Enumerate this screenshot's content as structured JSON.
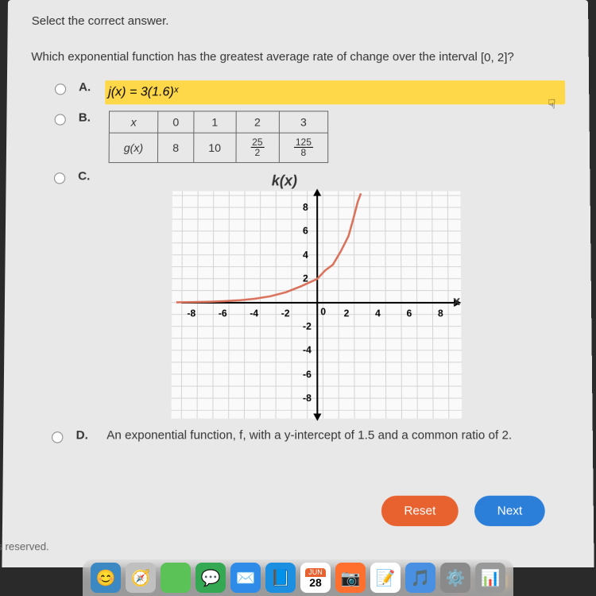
{
  "instruction": "Select the correct answer.",
  "question_prefix": "Which exponential function has the greatest average rate of change over the interval ",
  "interval": "[0, 2]",
  "question_suffix": "?",
  "options": {
    "A": {
      "label": "A.",
      "text": "j(x)  =  3(1.6)ˣ",
      "highlighted": true
    },
    "B": {
      "label": "B.",
      "table": {
        "header_x": "x",
        "header_g": "g(x)",
        "cols": [
          "0",
          "1",
          "2",
          "3"
        ],
        "vals": [
          "8",
          "10",
          "25/2",
          "125/8"
        ]
      }
    },
    "C": {
      "label": "C.",
      "chart": {
        "title": "k(x)",
        "xlabel": "x",
        "xlim": [
          -9,
          9
        ],
        "ylim": [
          -9,
          9
        ],
        "xticks": [
          -8,
          -6,
          -4,
          -2,
          0,
          2,
          4,
          6,
          8
        ],
        "yticks": [
          -8,
          -6,
          -4,
          -2,
          2,
          4,
          6,
          8
        ],
        "curve_color": "#d9705a",
        "grid_color": "#d4d4d4",
        "background": "#fafafa",
        "axis_color": "#000000",
        "curve_points": [
          [
            -9,
            0.03
          ],
          [
            -8,
            0.05
          ],
          [
            -7,
            0.08
          ],
          [
            -6,
            0.13
          ],
          [
            -5,
            0.2
          ],
          [
            -4,
            0.33
          ],
          [
            -3,
            0.54
          ],
          [
            -2,
            0.88
          ],
          [
            -1,
            1.4
          ],
          [
            0,
            2.0
          ],
          [
            0.5,
            2.7
          ],
          [
            1,
            3.2
          ],
          [
            1.5,
            4.3
          ],
          [
            2,
            5.6
          ],
          [
            2.3,
            7.0
          ],
          [
            2.6,
            8.5
          ],
          [
            2.8,
            9.2
          ]
        ]
      }
    },
    "D": {
      "label": "D.",
      "text": "An exponential function, f, with a y-intercept of 1.5 and a common ratio of 2."
    }
  },
  "buttons": {
    "reset": "Reset",
    "next": "Next"
  },
  "footer": "ts reserved.",
  "tv": "tv",
  "colors": {
    "highlight": "#ffd84a",
    "reset_btn": "#e8622f",
    "next_btn": "#2b7fd8"
  },
  "dock_colors": [
    "#3b88c3",
    "#c0c0c0",
    "#5ac257",
    "#34a853",
    "#2e8be8",
    "#1d8fe1",
    "#b23636",
    "#ff6f2e",
    "#ffffff",
    "#4a90e2",
    "#8a8a8a",
    "#999999"
  ]
}
